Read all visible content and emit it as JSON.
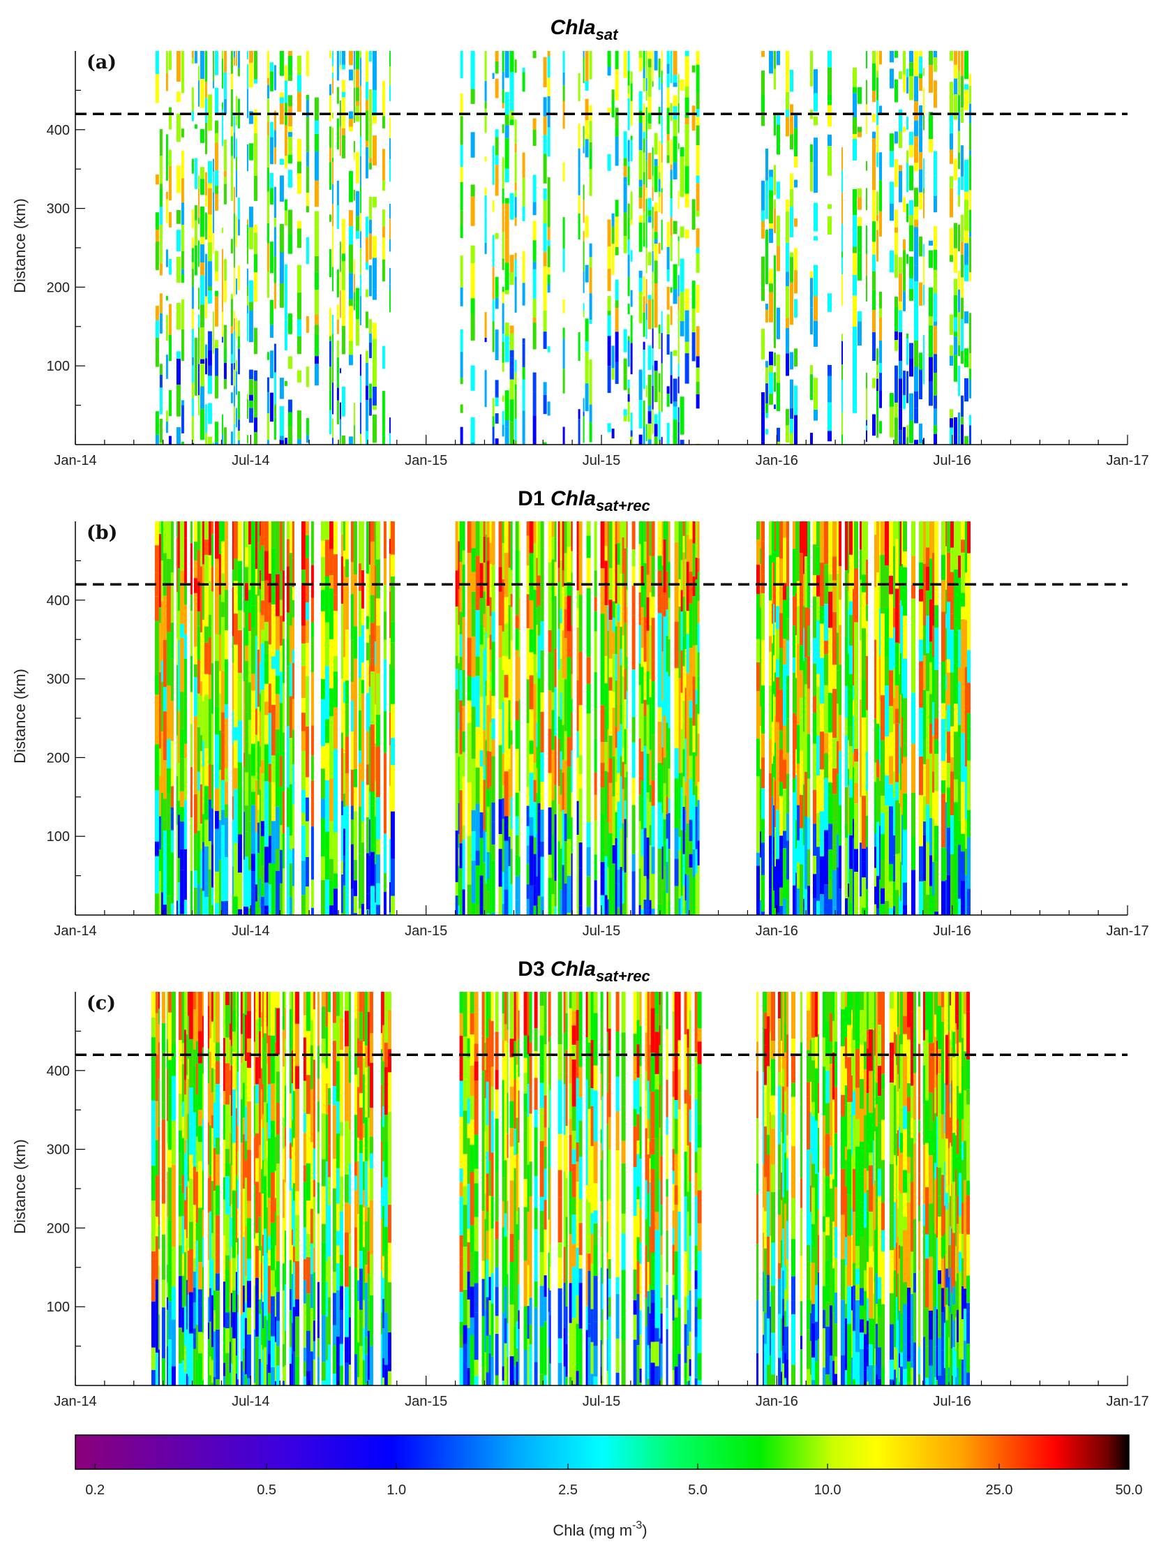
{
  "chart_data": {
    "type": "heatmap",
    "panels": [
      {
        "label": "(a)",
        "title": {
          "prefix": "",
          "main": "Chla",
          "subscript": "sat"
        },
        "x_ticks": [
          "Jan-14",
          "Jul-14",
          "Jan-15",
          "Jul-15",
          "Jan-16",
          "Jul-16",
          "Jan-17"
        ],
        "y_ticks": [
          100,
          200,
          300,
          400
        ],
        "ylabel": "Distance (km)",
        "ylim": [
          0,
          500
        ],
        "xlim_months": [
          0,
          36
        ],
        "dashed_line_km": 420,
        "data_months": [
          [
            2.6,
            10.8
          ],
          [
            13.0,
            21.3
          ],
          [
            23.3,
            30.6
          ]
        ],
        "coverage": "sparse"
      },
      {
        "label": "(b)",
        "title": {
          "prefix": "D1 ",
          "main": "Chla",
          "subscript": "sat+rec"
        },
        "x_ticks": [
          "Jan-14",
          "Jul-14",
          "Jan-15",
          "Jul-15",
          "Jan-16",
          "Jul-16",
          "Jan-17"
        ],
        "y_ticks": [
          100,
          200,
          300,
          400
        ],
        "ylabel": "Distance (km)",
        "ylim": [
          0,
          500
        ],
        "xlim_months": [
          0,
          36
        ],
        "dashed_line_km": 420,
        "data_months": [
          [
            2.6,
            10.8
          ],
          [
            13.0,
            21.3
          ],
          [
            23.3,
            30.6
          ]
        ],
        "coverage": "dense"
      },
      {
        "label": "(c)",
        "title": {
          "prefix": "D3 ",
          "main": "Chla",
          "subscript": "sat+rec"
        },
        "x_ticks": [
          "Jan-14",
          "Jul-14",
          "Jan-15",
          "Jul-15",
          "Jan-16",
          "Jul-16",
          "Jan-17"
        ],
        "y_ticks": [
          100,
          200,
          300,
          400
        ],
        "ylabel": "Distance (km)",
        "ylim": [
          0,
          500
        ],
        "xlim_months": [
          0,
          36
        ],
        "dashed_line_km": 420,
        "data_months": [
          [
            2.6,
            10.8
          ],
          [
            13.0,
            21.3
          ],
          [
            23.3,
            30.6
          ]
        ],
        "coverage": "dense"
      }
    ],
    "colorbar": {
      "label_main": "Chla (mg m",
      "label_sup": "-3",
      "label_end": ")",
      "ticks": [
        "0.2",
        "0.5",
        "1.0",
        "2.5",
        "5.0",
        "10.0",
        "25.0",
        "50.0"
      ],
      "tick_values": [
        0.2,
        0.5,
        1.0,
        2.5,
        5.0,
        10.0,
        25.0,
        50.0
      ],
      "scale": "log",
      "range": [
        0.18,
        50
      ],
      "colors": [
        "#7d0083",
        "#0000ff",
        "#00ffff",
        "#00ee00",
        "#ffff00",
        "#ff9900",
        "#ff0000",
        "#000000"
      ]
    }
  }
}
